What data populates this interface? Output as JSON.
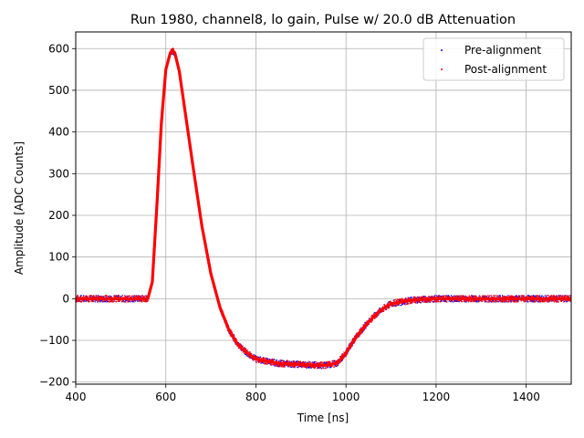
{
  "chart_data": {
    "type": "scatter",
    "title": "Run 1980, channel8, lo gain, Pulse w/ 20.0 dB Attenuation",
    "xlabel": "Time [ns]",
    "ylabel": "Amplitude [ADC Counts]",
    "xlim": [
      400,
      1500
    ],
    "ylim": [
      -205,
      640
    ],
    "xticks": [
      400,
      600,
      800,
      1000,
      1200,
      1400
    ],
    "yticks": [
      -200,
      -100,
      0,
      100,
      200,
      300,
      400,
      500,
      600
    ],
    "grid": true,
    "legend_position": "top-right",
    "series": [
      {
        "name": "Pre-alignment",
        "color": "#0000ff",
        "x": [
          400,
          560,
          570,
          580,
          590,
          600,
          610,
          615,
          620,
          630,
          640,
          660,
          680,
          700,
          720,
          740,
          760,
          780,
          800,
          850,
          900,
          950,
          980,
          1000,
          1020,
          1050,
          1080,
          1100,
          1150,
          1200,
          1300,
          1400,
          1500
        ],
        "y": [
          0,
          0,
          40,
          220,
          420,
          550,
          590,
          595,
          590,
          545,
          470,
          320,
          175,
          60,
          -20,
          -75,
          -110,
          -130,
          -145,
          -155,
          -158,
          -160,
          -155,
          -130,
          -95,
          -55,
          -25,
          -12,
          -3,
          0,
          0,
          0,
          0
        ]
      },
      {
        "name": "Post-alignment",
        "color": "#ff0000",
        "x": [
          400,
          560,
          570,
          580,
          590,
          600,
          610,
          615,
          620,
          630,
          640,
          660,
          680,
          700,
          720,
          740,
          760,
          780,
          800,
          850,
          900,
          950,
          980,
          1000,
          1020,
          1050,
          1080,
          1100,
          1150,
          1200,
          1300,
          1400,
          1500
        ],
        "y": [
          0,
          0,
          40,
          220,
          420,
          550,
          590,
          595,
          590,
          545,
          470,
          320,
          175,
          60,
          -20,
          -75,
          -110,
          -130,
          -145,
          -155,
          -158,
          -160,
          -155,
          -130,
          -95,
          -55,
          -25,
          -12,
          -3,
          0,
          0,
          0,
          0
        ]
      }
    ]
  }
}
